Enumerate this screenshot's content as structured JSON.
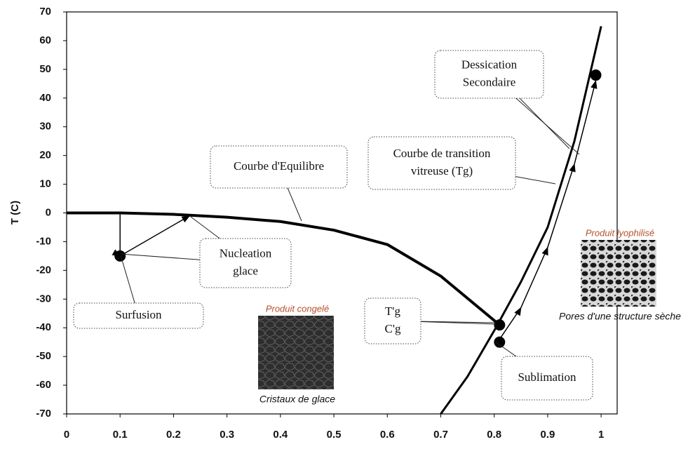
{
  "chart_data": {
    "type": "line",
    "y_label": "T (C)",
    "xlim": [
      0,
      1.03
    ],
    "ylim": [
      -70,
      70
    ],
    "xticks": [
      0,
      0.1,
      0.2,
      0.3,
      0.4,
      0.5,
      0.6,
      0.7,
      0.8,
      0.9,
      1
    ],
    "yticks": [
      -70,
      -60,
      -50,
      -40,
      -30,
      -20,
      -10,
      0,
      10,
      20,
      30,
      40,
      50,
      60,
      70
    ],
    "series": [
      {
        "color": "#000000",
        "line_width": 4,
        "x": [
          0,
          0.1,
          0.2,
          0.3,
          0.4,
          0.5,
          0.6,
          0.7,
          0.81
        ],
        "values": [
          0,
          0,
          -0.5,
          -1.5,
          -3,
          -6,
          -11,
          -22,
          -39
        ]
      },
      {
        "color": "#000000",
        "line_width": 3,
        "x": [
          0.7,
          0.75,
          0.8,
          0.85,
          0.9,
          0.95,
          1
        ],
        "values": [
          -70,
          -57,
          -41,
          -24,
          -5,
          25,
          65
        ]
      },
      {
        "color": "#000000",
        "line_width": 1.5,
        "x": [
          0.1,
          0.1,
          0.23
        ],
        "values": [
          0,
          -15,
          -1
        ]
      },
      {
        "color": "#000000",
        "line_width": 1.5,
        "x": [
          0.81,
          0.85,
          0.9,
          0.95,
          0.99
        ],
        "values": [
          -44,
          -33,
          -12,
          17,
          46
        ]
      },
      {
        "color": "#000000",
        "marker": "circle",
        "x": [
          0.1,
          0.81,
          0.81,
          0.99
        ],
        "values": [
          -15,
          -39,
          -45,
          48
        ]
      }
    ],
    "annotations": [
      {
        "lines": [
          "Courbe d'Equilibre"
        ]
      },
      {
        "lines": [
          "Nucleation",
          "glace"
        ]
      },
      {
        "lines": [
          "Surfusion"
        ]
      },
      {
        "lines": [
          "Dessication",
          "Secondaire"
        ]
      },
      {
        "lines": [
          "Courbe de transition",
          "vitreuse (Tg)"
        ]
      },
      {
        "lines": [
          "T'g",
          "C'g"
        ]
      },
      {
        "lines": [
          "Sublimation"
        ]
      }
    ],
    "images": [
      {
        "title": "Produit congelé",
        "caption": "Cristaux de glace"
      },
      {
        "title": "Produit lyophilisé",
        "caption": "Pores d'une structure sèche"
      }
    ]
  }
}
